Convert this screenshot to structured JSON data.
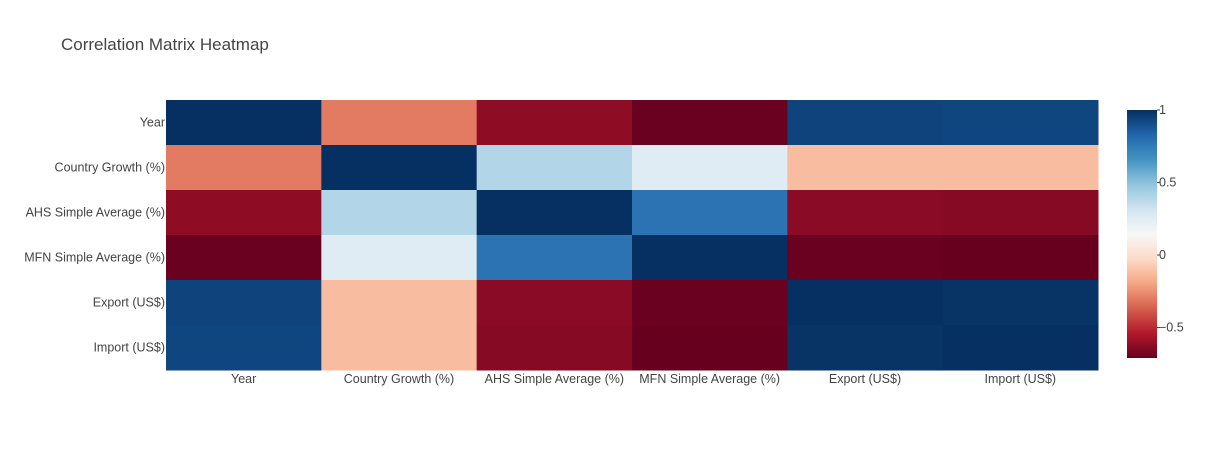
{
  "chart_data": {
    "type": "heatmap",
    "title": "Correlation Matrix Heatmap",
    "x_categories": [
      "Year",
      "Country Growth (%)",
      "AHS Simple Average (%)",
      "MFN Simple Average (%)",
      "Export (US$)",
      "Import (US$)"
    ],
    "y_categories": [
      "Year",
      "Country Growth (%)",
      "AHS Simple Average (%)",
      "MFN Simple Average (%)",
      "Export (US$)",
      "Import (US$)"
    ],
    "z": [
      [
        1.0,
        -0.3,
        -0.62,
        -0.7,
        0.94,
        0.93
      ],
      [
        -0.3,
        1.0,
        0.4,
        0.25,
        -0.12,
        -0.12
      ],
      [
        -0.62,
        0.4,
        1.0,
        0.78,
        -0.63,
        -0.64
      ],
      [
        -0.7,
        0.25,
        0.78,
        1.0,
        -0.7,
        -0.71
      ],
      [
        0.94,
        -0.12,
        -0.63,
        -0.7,
        1.0,
        0.99
      ],
      [
        0.93,
        -0.12,
        -0.64,
        -0.71,
        0.99,
        1.0
      ]
    ],
    "zmin": -0.71,
    "zmax": 1.0,
    "colorscale": "RdBu",
    "colorbar_ticks": [
      1,
      0.5,
      0,
      -0.5
    ],
    "colorbar_ticktext": [
      "1",
      "0.5",
      "0",
      "−0.5"
    ],
    "colors": [
      "#67001f",
      "#b2182b",
      "#d6604d",
      "#f4a582",
      "#fddbc7",
      "#f7f7f7",
      "#d1e5f0",
      "#92c5de",
      "#4393c3",
      "#2166ac",
      "#053061"
    ]
  }
}
